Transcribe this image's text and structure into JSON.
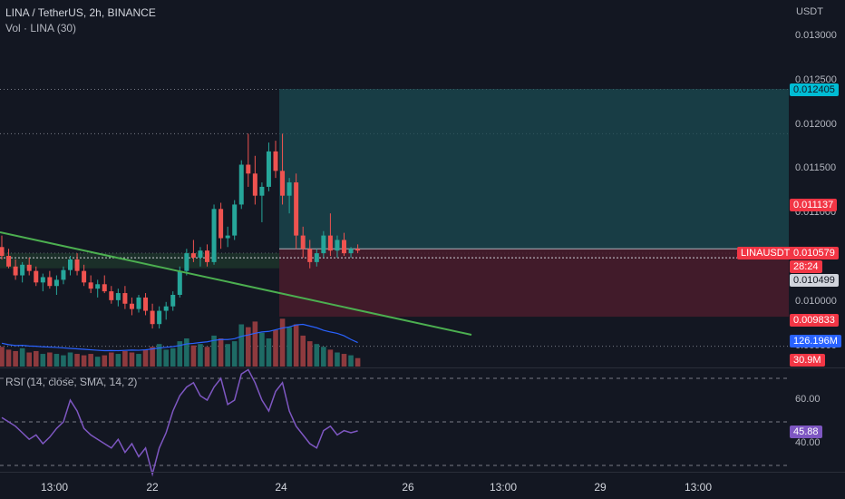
{
  "header": {
    "symbol": "LINA / TetherUS, 2h, BINANCE",
    "volume": "Vol · LINA (30)",
    "rsi": "RSI (14, close, SMA, 14, 2)"
  },
  "price_axis": {
    "currency": "USDT",
    "ticks": [
      "0.013000",
      "0.012500",
      "0.012000",
      "0.011500",
      "0.011000",
      "0.010500",
      "0.010000",
      "0.009500"
    ]
  },
  "badges": {
    "target": "0.012405",
    "entry": "0.011137",
    "symbol_tag": "LINAUSDT",
    "last_price": "0.010579",
    "countdown": "28:24",
    "current": "0.010499",
    "stop": "0.009833",
    "vol_ma": "126.196M",
    "volume": "30.9M",
    "rsi_value": "45.88"
  },
  "rsi_axis": {
    "ticks": [
      "60.00",
      "40.00"
    ]
  },
  "time_axis": {
    "labels": [
      "13:00",
      "22",
      "24",
      "26",
      "13:00",
      "29",
      "13:00"
    ]
  },
  "colors": {
    "background": "#131722",
    "up": "#26a69a",
    "down": "#ef5350",
    "trendline": "#4caf50",
    "rsi_line": "#7e57c2",
    "vol_ma_line": "#2962ff",
    "target_zone": "#1b4b52",
    "stop_zone": "#4a1c2b"
  },
  "chart_data": [
    {
      "type": "candlestick",
      "title": "LINA / TetherUS, 2h, BINANCE",
      "ylabel": "USDT",
      "ylim": [
        0.0093,
        0.0133
      ],
      "x_labels": [
        "13:00",
        "22",
        "24",
        "26",
        "13:00",
        "29",
        "13:00"
      ],
      "ohlc": [
        [
          0.01062,
          0.01075,
          0.01048,
          0.01052
        ],
        [
          0.01052,
          0.0106,
          0.01038,
          0.0104
        ],
        [
          0.0104,
          0.01048,
          0.01025,
          0.0103
        ],
        [
          0.0103,
          0.01045,
          0.01022,
          0.01042
        ],
        [
          0.01042,
          0.0105,
          0.0103,
          0.01035
        ],
        [
          0.01035,
          0.0104,
          0.01018,
          0.01022
        ],
        [
          0.01022,
          0.01032,
          0.01012,
          0.01028
        ],
        [
          0.01028,
          0.01035,
          0.01015,
          0.01018
        ],
        [
          0.01018,
          0.0103,
          0.01008,
          0.01025
        ],
        [
          0.01025,
          0.0104,
          0.0102,
          0.01036
        ],
        [
          0.01036,
          0.01052,
          0.0103,
          0.01048
        ],
        [
          0.01048,
          0.01055,
          0.0103,
          0.01035
        ],
        [
          0.01035,
          0.01042,
          0.01018,
          0.01022
        ],
        [
          0.01022,
          0.0103,
          0.0101,
          0.01015
        ],
        [
          0.01015,
          0.01025,
          0.01005,
          0.0102
        ],
        [
          0.0102,
          0.0103,
          0.0101,
          0.01012
        ],
        [
          0.01012,
          0.01018,
          0.00998,
          0.01002
        ],
        [
          0.01002,
          0.01015,
          0.00995,
          0.0101
        ],
        [
          0.0101,
          0.01018,
          0.00992,
          0.00998
        ],
        [
          0.00998,
          0.01005,
          0.00985,
          0.00992
        ],
        [
          0.00992,
          0.01008,
          0.00988,
          0.01005
        ],
        [
          0.01005,
          0.0101,
          0.00985,
          0.0099
        ],
        [
          0.0099,
          0.00998,
          0.0097,
          0.00975
        ],
        [
          0.00975,
          0.00995,
          0.0097,
          0.0099
        ],
        [
          0.0099,
          0.01,
          0.0098,
          0.00995
        ],
        [
          0.00995,
          0.01012,
          0.0099,
          0.01008
        ],
        [
          0.01008,
          0.0104,
          0.01005,
          0.01035
        ],
        [
          0.01035,
          0.0106,
          0.0103,
          0.01055
        ],
        [
          0.01055,
          0.0107,
          0.01045,
          0.0105
        ],
        [
          0.0105,
          0.01062,
          0.0104,
          0.01058
        ],
        [
          0.01058,
          0.01065,
          0.0104,
          0.01045
        ],
        [
          0.01045,
          0.0111,
          0.01042,
          0.01105
        ],
        [
          0.01105,
          0.01112,
          0.0106,
          0.01072
        ],
        [
          0.01072,
          0.01085,
          0.01062,
          0.01075
        ],
        [
          0.01075,
          0.01115,
          0.0107,
          0.0111
        ],
        [
          0.0111,
          0.0116,
          0.01105,
          0.01155
        ],
        [
          0.01155,
          0.0119,
          0.0113,
          0.01145
        ],
        [
          0.01145,
          0.01165,
          0.0111,
          0.0112
        ],
        [
          0.0112,
          0.01135,
          0.0109,
          0.0113
        ],
        [
          0.0113,
          0.0118,
          0.01125,
          0.0117
        ],
        [
          0.0117,
          0.01182,
          0.0114,
          0.01148
        ],
        [
          0.01148,
          0.0119,
          0.0111,
          0.0112
        ],
        [
          0.0112,
          0.0114,
          0.011,
          0.01135
        ],
        [
          0.01135,
          0.01145,
          0.0106,
          0.01075
        ],
        [
          0.01075,
          0.01085,
          0.0105,
          0.0106
        ],
        [
          0.0106,
          0.0107,
          0.01038,
          0.01045
        ],
        [
          0.01045,
          0.0106,
          0.0104,
          0.01055
        ],
        [
          0.01055,
          0.0108,
          0.0105,
          0.01075
        ],
        [
          0.01075,
          0.011,
          0.01052,
          0.01058
        ],
        [
          0.01058,
          0.01075,
          0.0105,
          0.0107
        ],
        [
          0.0107,
          0.01078,
          0.01052,
          0.01055
        ],
        [
          0.01055,
          0.01062,
          0.0105,
          0.0106
        ],
        [
          0.0106,
          0.01065,
          0.01055,
          0.01058
        ]
      ],
      "volume": [
        14,
        12,
        11,
        13,
        10,
        11,
        9,
        10,
        9,
        8,
        10,
        9,
        8,
        9,
        7,
        8,
        10,
        9,
        11,
        10,
        9,
        12,
        14,
        16,
        12,
        13,
        18,
        20,
        15,
        16,
        14,
        22,
        20,
        16,
        18,
        30,
        28,
        32,
        24,
        20,
        26,
        34,
        28,
        30,
        22,
        18,
        16,
        14,
        12,
        10,
        9,
        8,
        6
      ],
      "series": [
        {
          "name": "RSI",
          "values": [
            52,
            50,
            48,
            45,
            42,
            44,
            40,
            43,
            47,
            50,
            60,
            55,
            47,
            44,
            42,
            40,
            38,
            42,
            36,
            40,
            34,
            38,
            26,
            38,
            45,
            55,
            62,
            66,
            68,
            62,
            60,
            66,
            70,
            58,
            60,
            72,
            74,
            68,
            60,
            55,
            64,
            68,
            55,
            48,
            44,
            40,
            38,
            46,
            48,
            44,
            46,
            45,
            45.88
          ]
        }
      ]
    }
  ]
}
